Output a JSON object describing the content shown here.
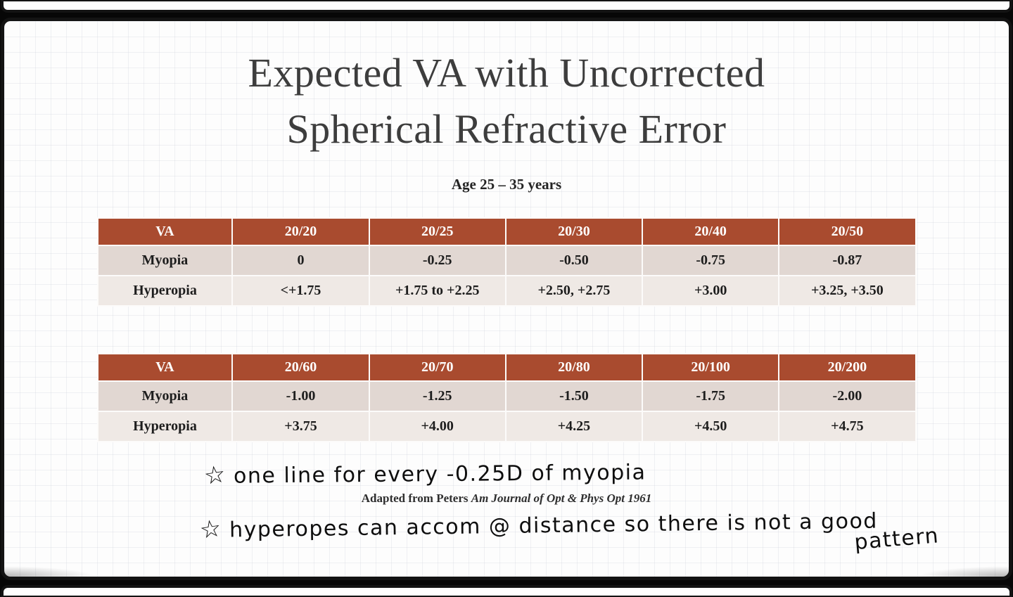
{
  "slide": {
    "title_line1": "Expected VA with Uncorrected",
    "title_line2": "Spherical Refractive Error",
    "subtitle": "Age 25 – 35 years",
    "tables": [
      {
        "headers": [
          "VA",
          "20/20",
          "20/25",
          "20/30",
          "20/40",
          "20/50"
        ],
        "rows": [
          {
            "label": "Myopia",
            "values": [
              "0",
              "-0.25",
              "-0.50",
              "-0.75",
              "-0.87"
            ]
          },
          {
            "label": "Hyperopia",
            "values": [
              "<+1.75",
              "+1.75 to +2.25",
              "+2.50, +2.75",
              "+3.00",
              "+3.25, +3.50"
            ]
          }
        ]
      },
      {
        "headers": [
          "VA",
          "20/60",
          "20/70",
          "20/80",
          "20/100",
          "20/200"
        ],
        "rows": [
          {
            "label": "Myopia",
            "values": [
              "-1.00",
              "-1.25",
              "-1.50",
              "-1.75",
              "-2.00"
            ]
          },
          {
            "label": "Hyperopia",
            "values": [
              "+3.75",
              "+4.00",
              "+4.25",
              "+4.50",
              "+4.75"
            ]
          }
        ]
      }
    ],
    "annotations": {
      "star_glyph": "☆",
      "note1": "one line for every -0.25D of myopia",
      "note2": "hyperopes can accom @ distance so there is not a good",
      "note2_tail": "pattern"
    },
    "citation": {
      "prefix": "Adapted from Peters ",
      "journal": "Am Journal of Opt & Phys Opt 1961"
    },
    "colors": {
      "table_header_bg": "#a94b2f",
      "row_myopia_bg": "#e1d7d2",
      "row_hyperopia_bg": "#efe9e5"
    }
  }
}
